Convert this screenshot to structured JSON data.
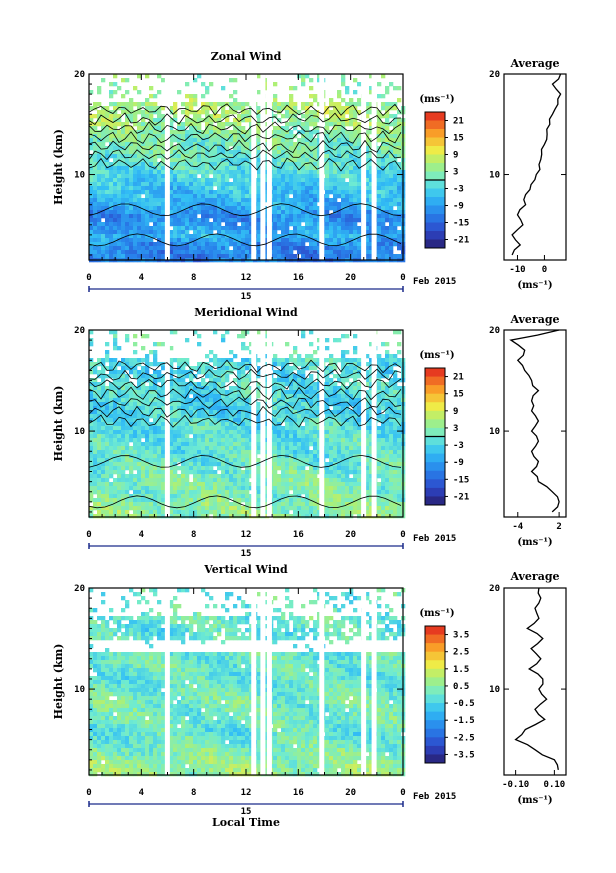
{
  "figure": {
    "date_label": "Feb 2015",
    "day_label": "15",
    "x_axis_title": "Local Time",
    "y_axis_title": "Height (km)",
    "average_title": "Average",
    "unit_label": "(ms⁻¹)",
    "gaps_hours": [
      5.8,
      12.4,
      13.1,
      13.6,
      17.6,
      20.8,
      21.6
    ]
  },
  "chart_data": [
    {
      "type": "heatmap",
      "title": "Zonal Wind",
      "xlabel": "",
      "ylabel": "Height (km)",
      "x_ticks": [
        "0",
        "4",
        "8",
        "12",
        "16",
        "20",
        "0"
      ],
      "y_ticks": [
        "10",
        "20"
      ],
      "xlim": [
        0,
        24
      ],
      "ylim": [
        1.5,
        20
      ],
      "colorbar": {
        "label": "(ms⁻¹)",
        "range": [
          -24,
          24
        ],
        "ticks": [
          "21",
          "15",
          "9",
          "3",
          "-3",
          "-9",
          "-15",
          "-21"
        ],
        "contour_at": 0
      },
      "heights_km": [
        3,
        4,
        5,
        6,
        7,
        8,
        9,
        10,
        11,
        12,
        13,
        14,
        15,
        16,
        17,
        18,
        19
      ],
      "mean_profile_ms": [
        -12,
        -7,
        -9,
        -11,
        -8,
        -6,
        -5,
        -3,
        -1,
        0,
        1,
        2,
        4,
        5,
        6,
        4,
        3
      ],
      "average_profile": {
        "title": "Average",
        "xlabel": "(ms⁻¹)",
        "x_ticks": [
          "-10",
          "0"
        ],
        "xlim": [
          -15,
          8
        ],
        "y_ticks": [
          "10",
          "20"
        ],
        "heights_km": [
          2,
          3,
          4,
          5,
          6,
          7,
          8,
          9,
          10,
          11,
          12,
          13,
          14,
          15,
          16,
          17,
          18,
          19,
          20
        ],
        "values": [
          -12,
          -9,
          -12,
          -8,
          -10,
          -7,
          -7,
          -5,
          -3,
          -2,
          -1,
          0,
          1,
          2,
          3,
          5,
          6,
          3,
          6
        ]
      }
    },
    {
      "type": "heatmap",
      "title": "Meridional Wind",
      "xlabel": "",
      "ylabel": "Height (km)",
      "x_ticks": [
        "0",
        "4",
        "8",
        "12",
        "16",
        "20",
        "0"
      ],
      "y_ticks": [
        "10",
        "20"
      ],
      "xlim": [
        0,
        24
      ],
      "ylim": [
        1.5,
        20
      ],
      "colorbar": {
        "label": "(ms⁻¹)",
        "range": [
          -24,
          24
        ],
        "ticks": [
          "21",
          "15",
          "9",
          "3",
          "-3",
          "-9",
          "-15",
          "-21"
        ],
        "contour_at": 0
      },
      "heights_km": [
        3,
        4,
        5,
        6,
        7,
        8,
        9,
        10,
        11,
        12,
        13,
        14,
        15,
        16,
        17,
        18,
        19
      ],
      "mean_profile_ms": [
        3,
        1,
        2,
        1,
        0,
        -1,
        -1,
        -2,
        -2,
        -3,
        -3,
        -2,
        -2,
        -3,
        -2,
        -1,
        0
      ],
      "average_profile": {
        "title": "Average",
        "xlabel": "(ms⁻¹)",
        "x_ticks": [
          "-4",
          "2"
        ],
        "xlim": [
          -6,
          3
        ],
        "y_ticks": [
          "10",
          "20"
        ],
        "heights_km": [
          2,
          3,
          4,
          5,
          6,
          7,
          8,
          9,
          10,
          11,
          12,
          13,
          14,
          15,
          16,
          17,
          18,
          19,
          20
        ],
        "values": [
          1,
          2,
          1,
          -1,
          -2,
          -1,
          -2,
          -1,
          -2,
          -1,
          -2,
          -2,
          -1,
          -2,
          -3,
          -4,
          -3,
          -5,
          2
        ]
      }
    },
    {
      "type": "heatmap",
      "title": "Vertical Wind",
      "xlabel": "Local Time",
      "ylabel": "Height (km)",
      "x_ticks": [
        "0",
        "4",
        "8",
        "12",
        "16",
        "20",
        "0"
      ],
      "y_ticks": [
        "10",
        "20"
      ],
      "xlim": [
        0,
        24
      ],
      "ylim": [
        1.5,
        20
      ],
      "colorbar": {
        "label": "(ms⁻¹)",
        "range": [
          -4,
          4
        ],
        "ticks": [
          "3.5",
          "2.5",
          "1.5",
          "0.5",
          "-0.5",
          "-1.5",
          "-2.5",
          "-3.5"
        ],
        "contour_at": null
      },
      "heights_km": [
        3,
        4,
        5,
        6,
        7,
        8,
        9,
        10,
        11,
        12,
        13,
        14,
        15,
        16,
        17,
        18,
        19
      ],
      "mean_profile_ms": [
        0.6,
        0.3,
        0.1,
        -0.2,
        0.2,
        0.1,
        0.2,
        0.1,
        -0.1,
        0.0,
        0.1,
        -0.1,
        0.0,
        -0.2,
        0.1,
        0.0,
        -0.1
      ],
      "average_profile": {
        "title": "Average",
        "xlabel": "(ms⁻¹)",
        "x_ticks": [
          "-0.10",
          "0.10"
        ],
        "xlim": [
          -0.16,
          0.16
        ],
        "y_ticks": [
          "10",
          "20"
        ],
        "heights_km": [
          2,
          3,
          4,
          5,
          6,
          7,
          8,
          9,
          10,
          11,
          12,
          13,
          14,
          15,
          16,
          17,
          18,
          19,
          20
        ],
        "values": [
          0.12,
          0.1,
          0.0,
          -0.1,
          -0.05,
          0.05,
          0.0,
          0.06,
          0.02,
          0.04,
          -0.03,
          0.03,
          -0.02,
          0.04,
          -0.04,
          0.02,
          0.0,
          0.03,
          0.02
        ]
      }
    }
  ]
}
